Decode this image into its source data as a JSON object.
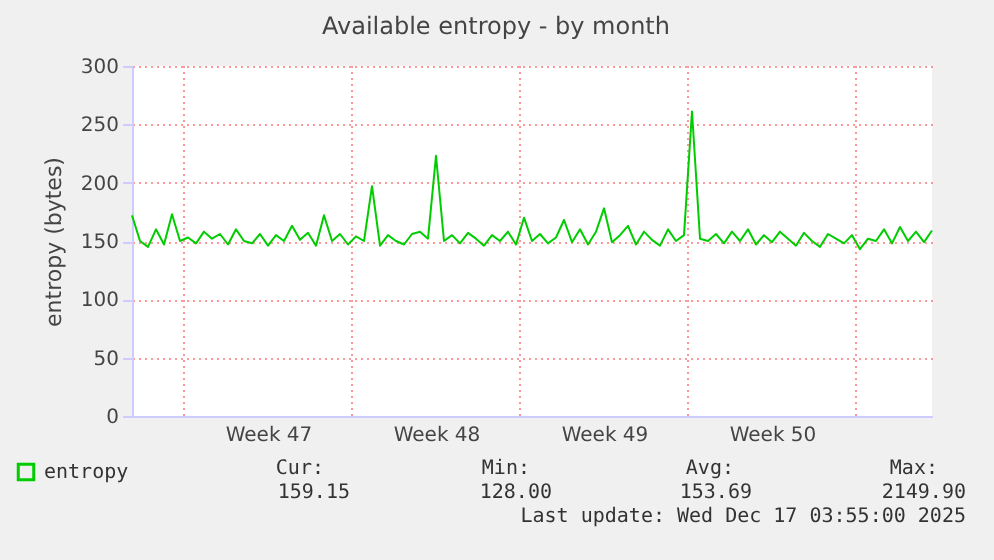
{
  "chart_data": {
    "type": "line",
    "title": "Available entropy - by month",
    "ylabel": "entropy (bytes)",
    "x": [
      "2025-11-13T20:00",
      "2025-11-14T04:00",
      "2025-11-14T12:00",
      "2025-11-14T20:00",
      "2025-11-15T04:00",
      "2025-11-15T12:00",
      "2025-11-15T20:00",
      "2025-11-16T04:00",
      "2025-11-16T12:00",
      "2025-11-16T20:00",
      "2025-11-17T04:00",
      "2025-11-17T12:00",
      "2025-11-17T20:00",
      "2025-11-18T04:00",
      "2025-11-18T12:00",
      "2025-11-18T20:00",
      "2025-11-19T04:00",
      "2025-11-19T12:00",
      "2025-11-19T20:00",
      "2025-11-20T04:00",
      "2025-11-20T12:00",
      "2025-11-20T20:00",
      "2025-11-21T04:00",
      "2025-11-21T12:00",
      "2025-11-21T20:00",
      "2025-11-22T04:00",
      "2025-11-22T12:00",
      "2025-11-22T20:00",
      "2025-11-23T04:00",
      "2025-11-23T12:00",
      "2025-11-23T20:00",
      "2025-11-24T04:00",
      "2025-11-24T12:00",
      "2025-11-24T20:00",
      "2025-11-25T04:00",
      "2025-11-25T12:00",
      "2025-11-25T20:00",
      "2025-11-26T04:00",
      "2025-11-26T12:00",
      "2025-11-26T20:00",
      "2025-11-27T04:00",
      "2025-11-27T12:00",
      "2025-11-27T20:00",
      "2025-11-28T04:00",
      "2025-11-28T12:00",
      "2025-11-28T20:00",
      "2025-11-29T04:00",
      "2025-11-29T12:00",
      "2025-11-29T20:00",
      "2025-11-30T04:00",
      "2025-11-30T12:00",
      "2025-11-30T20:00",
      "2025-12-01T04:00",
      "2025-12-01T12:00",
      "2025-12-01T20:00",
      "2025-12-02T04:00",
      "2025-12-02T12:00",
      "2025-12-02T20:00",
      "2025-12-03T04:00",
      "2025-12-03T12:00",
      "2025-12-03T20:00",
      "2025-12-04T04:00",
      "2025-12-04T12:00",
      "2025-12-04T20:00",
      "2025-12-05T04:00",
      "2025-12-05T12:00",
      "2025-12-05T20:00",
      "2025-12-06T04:00",
      "2025-12-06T12:00",
      "2025-12-06T20:00",
      "2025-12-07T04:00",
      "2025-12-07T12:00",
      "2025-12-07T20:00",
      "2025-12-08T04:00",
      "2025-12-08T12:00",
      "2025-12-08T20:00",
      "2025-12-09T04:00",
      "2025-12-09T12:00",
      "2025-12-09T20:00",
      "2025-12-10T04:00",
      "2025-12-10T12:00",
      "2025-12-10T20:00",
      "2025-12-11T04:00",
      "2025-12-11T12:00",
      "2025-12-11T20:00",
      "2025-12-12T04:00",
      "2025-12-12T12:00",
      "2025-12-12T20:00",
      "2025-12-13T04:00",
      "2025-12-13T12:00",
      "2025-12-13T20:00",
      "2025-12-14T04:00",
      "2025-12-14T12:00",
      "2025-12-14T20:00",
      "2025-12-15T04:00",
      "2025-12-15T12:00",
      "2025-12-15T20:00",
      "2025-12-16T04:00",
      "2025-12-16T12:00",
      "2025-12-16T20:00",
      "2025-12-17T04:00"
    ],
    "series": [
      {
        "name": "entropy",
        "color": "#00cc00",
        "values": [
          172,
          150,
          145,
          160,
          147,
          173,
          150,
          153,
          148,
          158,
          152,
          156,
          147,
          160,
          150,
          148,
          156,
          146,
          155,
          150,
          163,
          151,
          157,
          146,
          172,
          150,
          156,
          147,
          154,
          150,
          197,
          146,
          155,
          150,
          147,
          156,
          158,
          152,
          223,
          150,
          155,
          148,
          157,
          152,
          146,
          155,
          150,
          158,
          147,
          170,
          150,
          156,
          148,
          153,
          168,
          149,
          160,
          147,
          158,
          178,
          149,
          155,
          163,
          147,
          158,
          151,
          146,
          160,
          150,
          155,
          261,
          152,
          150,
          156,
          148,
          158,
          150,
          160,
          147,
          155,
          149,
          158,
          152,
          146,
          157,
          150,
          145,
          156,
          152,
          148,
          155,
          143,
          152,
          150,
          160,
          148,
          162,
          150,
          158,
          149,
          159
        ]
      }
    ],
    "xlim": [
      "2025-11-13T20:00",
      "2025-12-17T04:00"
    ],
    "xticks": [
      {
        "value": "2025-11-19T12:00",
        "label": "Week 47"
      },
      {
        "value": "2025-11-26T12:00",
        "label": "Week 48"
      },
      {
        "value": "2025-12-03T12:00",
        "label": "Week 49"
      },
      {
        "value": "2025-12-10T12:00",
        "label": "Week 50"
      }
    ],
    "ylim": [
      0,
      300
    ],
    "yticks": [
      0,
      50,
      100,
      150,
      200,
      250,
      300
    ],
    "grid": "y",
    "legend": "bottom left",
    "ref_lines": [
      {
        "axis": "x",
        "value": "2025-11-16T00:00",
        "color": "#ff9999",
        "line_style": "dotted"
      },
      {
        "axis": "x",
        "value": "2025-11-23T00:00",
        "color": "#ff9999",
        "line_style": "dotted"
      },
      {
        "axis": "x",
        "value": "2025-11-30T00:00",
        "color": "#ff9999",
        "line_style": "dotted"
      },
      {
        "axis": "x",
        "value": "2025-12-07T00:00",
        "color": "#ff9999",
        "line_style": "dotted"
      },
      {
        "axis": "x",
        "value": "2025-12-14T00:00",
        "color": "#ff9999",
        "line_style": "dotted"
      }
    ],
    "annotations": [
      "Cur:",
      "Min:",
      "Avg:",
      "Max:",
      "159.15",
      "128.00",
      "153.69",
      "2149.90",
      "Last update: Wed Dec 17 03:55:00 2025"
    ]
  }
}
